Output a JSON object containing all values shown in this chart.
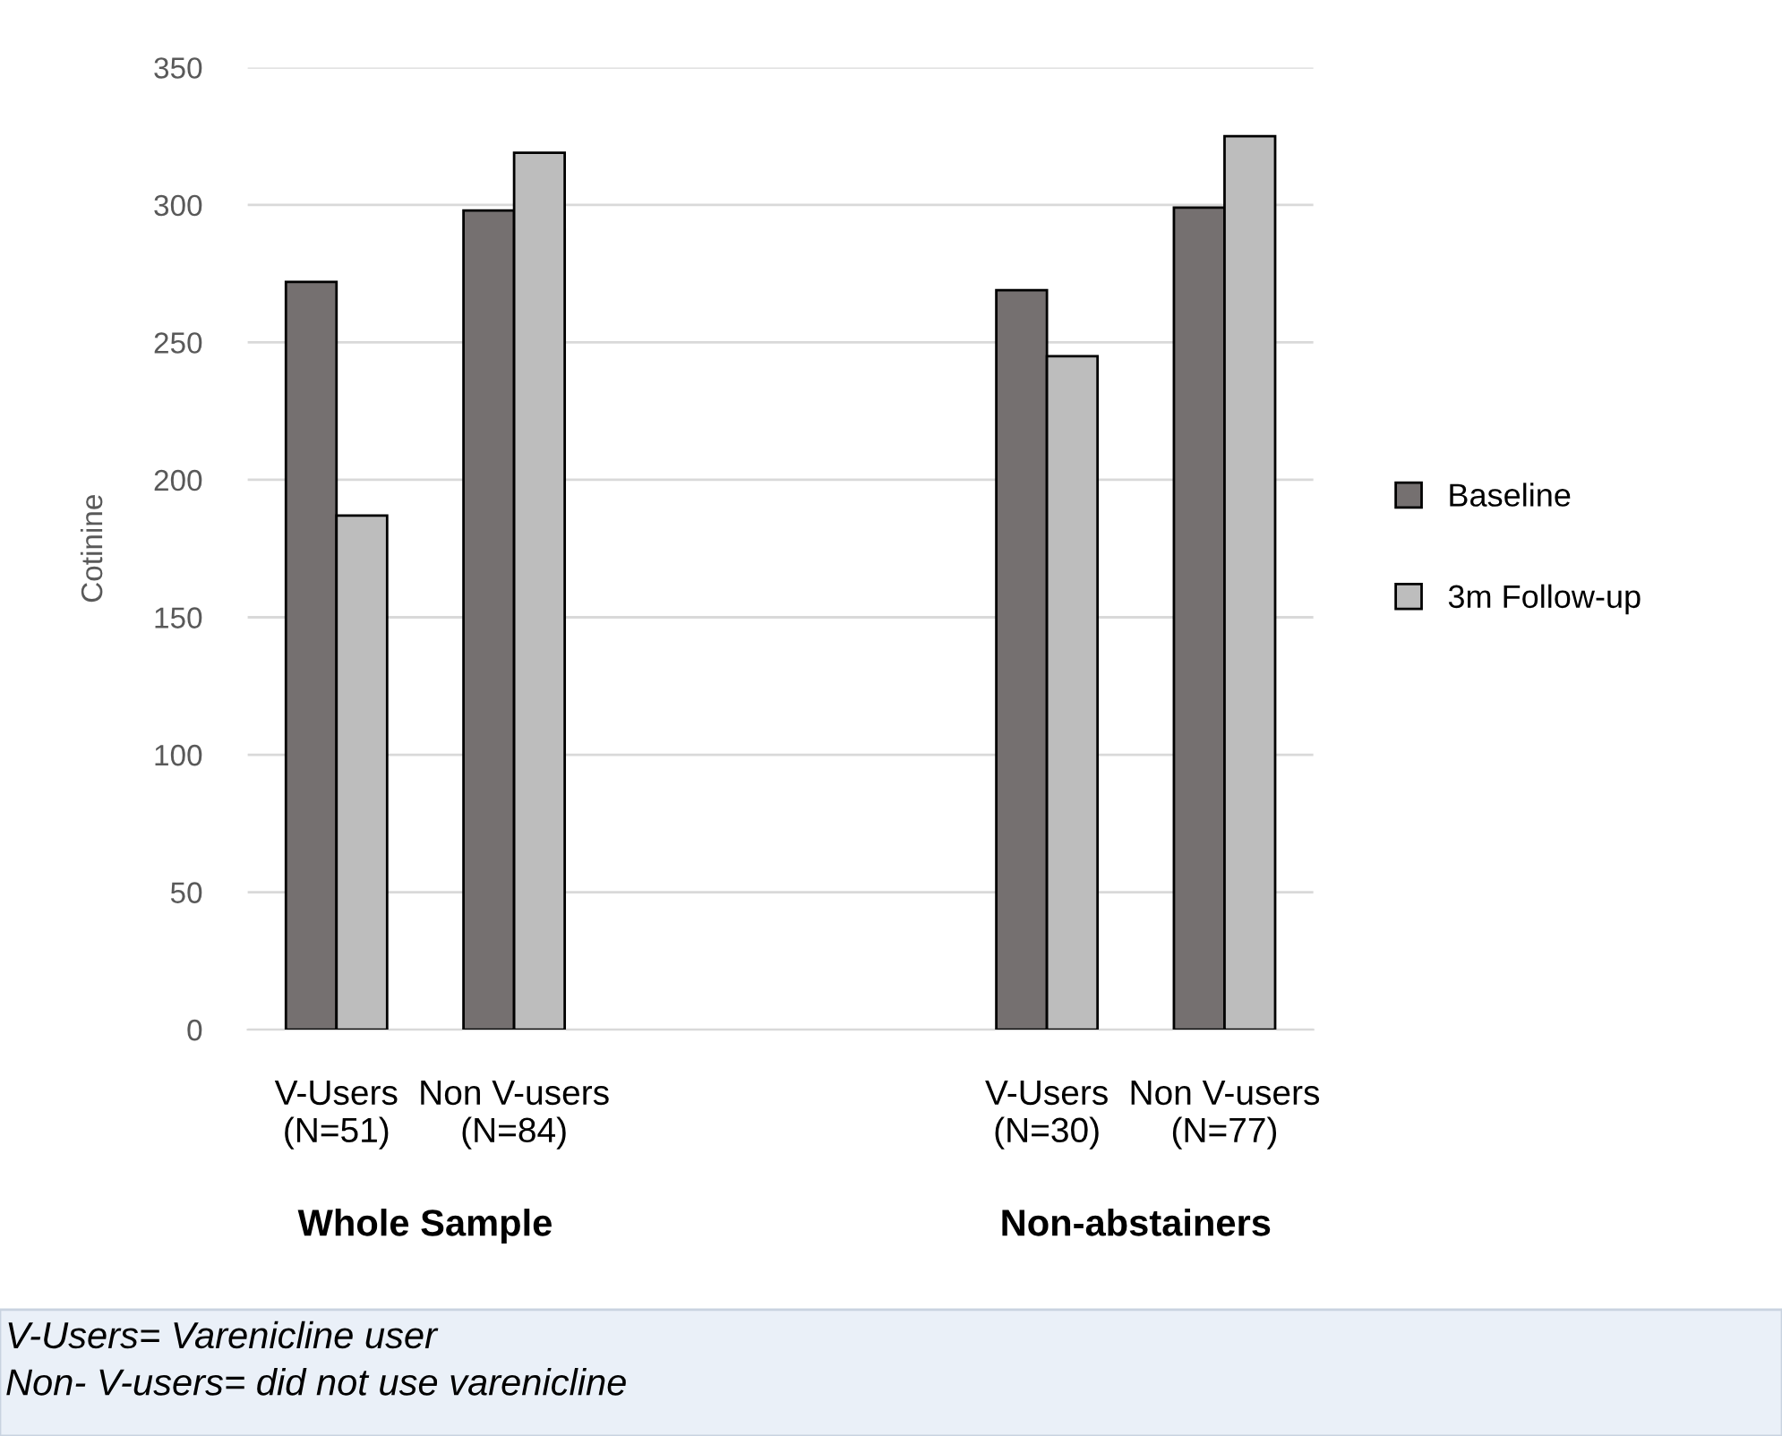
{
  "chart_data": {
    "type": "bar",
    "ylabel": "Cotinine",
    "categories": [
      "V-Users\n(N=51)",
      "Non V-users\n(N=84)",
      null,
      null,
      "V-Users\n(N=30)",
      "Non V-users\n(N=77)"
    ],
    "series": [
      {
        "name": "Baseline",
        "color": "#757070",
        "values": [
          272,
          298,
          null,
          null,
          269,
          299
        ]
      },
      {
        "name": "3m Follow-up",
        "color": "#bdbdbd",
        "values": [
          187,
          319,
          null,
          null,
          245,
          325
        ]
      }
    ],
    "ylim": [
      0,
      350
    ],
    "yticks": [
      0,
      50,
      100,
      150,
      200,
      250,
      300,
      350
    ],
    "grid": "y",
    "legend": "right",
    "annotations": [
      "Whole Sample",
      "Non-abstainers",
      "V-Users= Varenicline user\nNon- V-users= did not use varenicline"
    ]
  }
}
